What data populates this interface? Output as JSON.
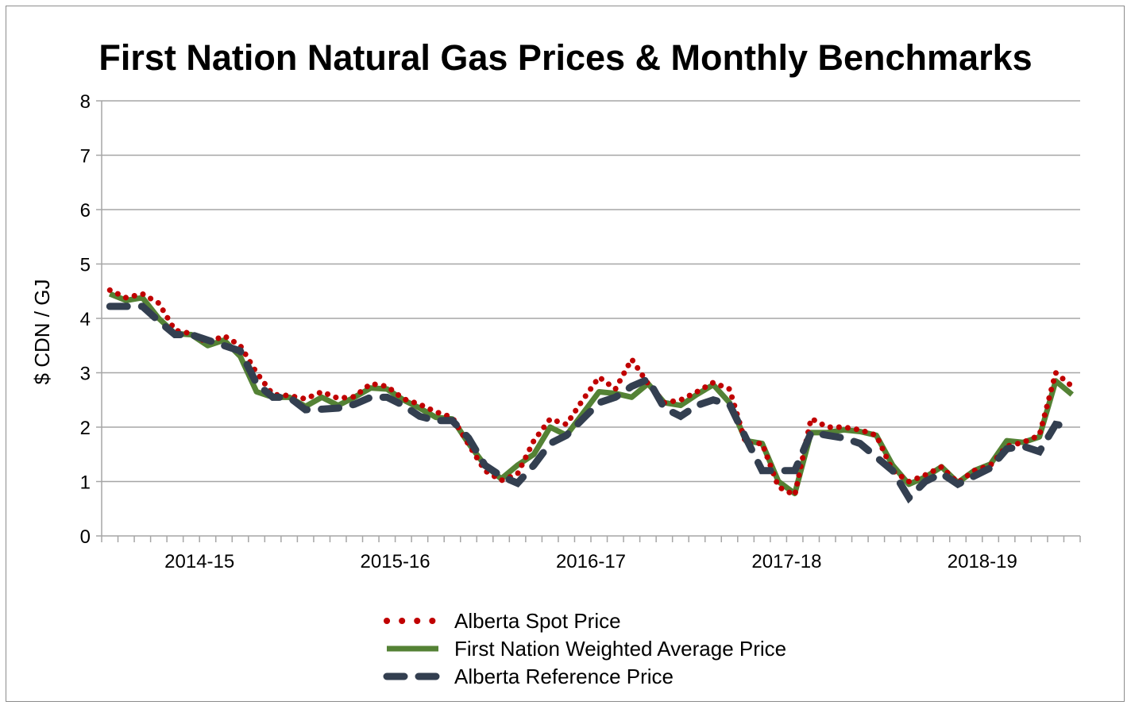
{
  "chart_data": {
    "type": "line",
    "title": "First Nation Natural Gas Prices & Monthly Benchmarks",
    "xlabel": "",
    "ylabel": "$ CDN / GJ",
    "ylim": [
      0,
      8
    ],
    "yticks": [
      "0",
      "1",
      "2",
      "3",
      "4",
      "5",
      "6",
      "7",
      "8"
    ],
    "x_period_labels": [
      "2014-15",
      "2015-16",
      "2016-17",
      "2017-18",
      "2018-19"
    ],
    "months_per_period": 12,
    "grid": "horizontal",
    "legend": "bottom",
    "series": [
      {
        "name": "Alberta Spot Price",
        "style": "dotted",
        "color": "#c00000",
        "values": [
          4.52,
          4.38,
          4.45,
          4.28,
          3.78,
          3.72,
          3.55,
          3.68,
          3.5,
          3.0,
          2.6,
          2.58,
          2.52,
          2.65,
          2.53,
          2.56,
          2.8,
          2.75,
          2.52,
          2.42,
          2.28,
          2.18,
          1.68,
          1.2,
          1.02,
          1.14,
          1.75,
          2.15,
          2.05,
          2.5,
          2.92,
          2.7,
          3.25,
          2.8,
          2.45,
          2.5,
          2.65,
          2.82,
          2.7,
          1.7,
          1.7,
          0.9,
          0.75,
          2.16,
          2.0,
          2.0,
          1.95,
          1.85,
          1.2,
          1.0,
          1.12,
          1.27,
          0.98,
          1.2,
          1.3,
          1.65,
          1.72,
          1.85,
          3.0,
          2.75
        ]
      },
      {
        "name": "First Nation Weighted Average Price",
        "style": "solid",
        "color": "#548235",
        "values": [
          4.45,
          4.33,
          4.38,
          4.0,
          3.72,
          3.7,
          3.5,
          3.6,
          3.3,
          2.65,
          2.55,
          2.55,
          2.38,
          2.55,
          2.4,
          2.55,
          2.72,
          2.7,
          2.5,
          2.35,
          2.18,
          2.15,
          1.7,
          1.3,
          1.05,
          1.3,
          1.5,
          2.0,
          1.85,
          2.25,
          2.65,
          2.62,
          2.55,
          2.8,
          2.45,
          2.4,
          2.6,
          2.78,
          2.45,
          1.75,
          1.7,
          1.0,
          0.78,
          1.9,
          1.9,
          1.95,
          1.92,
          1.85,
          1.3,
          0.95,
          1.08,
          1.27,
          0.98,
          1.2,
          1.32,
          1.75,
          1.72,
          1.82,
          2.85,
          2.6
        ]
      },
      {
        "name": "Alberta Reference Price",
        "style": "dashed",
        "color": "#333f50",
        "values": [
          4.22,
          4.22,
          4.22,
          3.95,
          3.7,
          3.7,
          3.6,
          3.5,
          3.4,
          2.8,
          2.55,
          2.55,
          2.32,
          2.33,
          2.35,
          2.42,
          2.55,
          2.55,
          2.4,
          2.2,
          2.12,
          2.12,
          1.8,
          1.3,
          1.1,
          0.97,
          1.3,
          1.7,
          1.85,
          2.15,
          2.45,
          2.55,
          2.75,
          2.88,
          2.35,
          2.2,
          2.4,
          2.5,
          2.42,
          1.8,
          1.2,
          1.2,
          1.2,
          1.9,
          1.85,
          1.8,
          1.7,
          1.45,
          1.2,
          0.7,
          1.0,
          1.15,
          0.95,
          1.1,
          1.25,
          1.6,
          1.65,
          1.55,
          2.05,
          2.0
        ]
      }
    ]
  }
}
